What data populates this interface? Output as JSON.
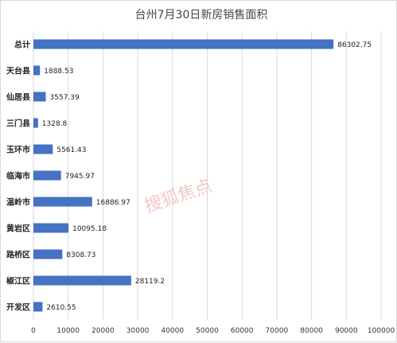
{
  "chart_data": {
    "type": "bar",
    "orientation": "horizontal",
    "title": "台州7月30日新房销售面积",
    "categories": [
      "总计",
      "天台县",
      "仙居县",
      "三门县",
      "玉环市",
      "临海市",
      "温岭市",
      "黄岩区",
      "路桥区",
      "椒江区",
      "开发区"
    ],
    "values": [
      86302.75,
      1888.53,
      3557.39,
      1328.8,
      5561.43,
      7945.97,
      16886.97,
      10095.18,
      8308.73,
      28119.2,
      2610.55
    ],
    "value_labels": [
      "86302.75",
      "1888.53",
      "3557.39",
      "1328.8",
      "5561.43",
      "7945.97",
      "16886.97",
      "10095.18",
      "8308.73",
      "28119.2",
      "2610.55"
    ],
    "x_ticks": [
      0,
      10000,
      20000,
      30000,
      40000,
      50000,
      60000,
      70000,
      80000,
      90000,
      100000
    ],
    "xlim": [
      0,
      100000
    ],
    "grid": "vertical",
    "legend": "none",
    "bar_color": "#4472c4",
    "grid_color": "#d9d9d9"
  },
  "watermark": {
    "text": "搜狐焦点"
  }
}
